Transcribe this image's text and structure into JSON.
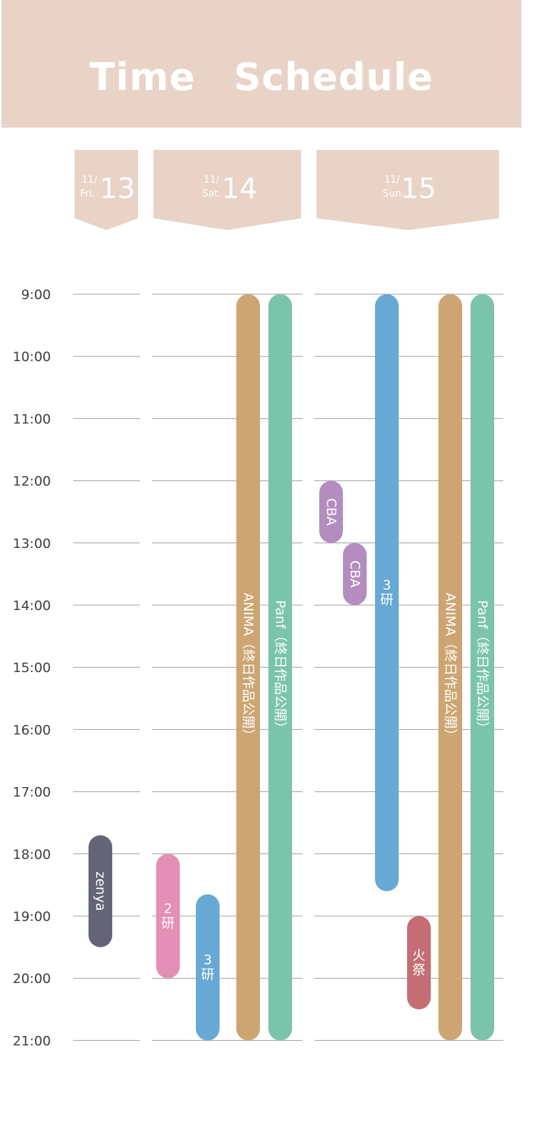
{
  "title": "Time　Schedule",
  "colors": {
    "header_bg": "#e8d3c6",
    "grid": "#9c9c9c",
    "anima": "#cda573",
    "panf": "#7bc4ac",
    "ken3": "#68a8d4",
    "ken2": "#e48fb5",
    "cba": "#b58cbf",
    "zenya": "#636478",
    "hisai": "#c46e74"
  },
  "days": [
    {
      "month": "11/",
      "weekday": "Fri.",
      "date": "13"
    },
    {
      "month": "11/",
      "weekday": "Sat.",
      "date": "14"
    },
    {
      "month": "11/",
      "weekday": "Sun.",
      "date": "15"
    }
  ],
  "chart_data": {
    "type": "timeline",
    "title": "Time　Schedule",
    "time_labels": [
      "9:00",
      "10:00",
      "11:00",
      "12:00",
      "13:00",
      "14:00",
      "15:00",
      "16:00",
      "17:00",
      "18:00",
      "19:00",
      "20:00",
      "21:00"
    ],
    "time_range": [
      9,
      21
    ],
    "events": [
      {
        "day": 0,
        "label": "zenya",
        "start": 17.7,
        "end": 19.5,
        "color": "#636478",
        "orientation": "rotated"
      },
      {
        "day": 1,
        "label": "2研",
        "start": 18.0,
        "end": 20.0,
        "color": "#e48fb5",
        "orientation": "upright"
      },
      {
        "day": 1,
        "label": "3研",
        "start": 18.65,
        "end": 21.0,
        "color": "#68a8d4",
        "orientation": "upright"
      },
      {
        "day": 1,
        "label": "ANIMA（終日作品公開）",
        "start": 9.0,
        "end": 21.0,
        "color": "#cda573",
        "orientation": "rotated"
      },
      {
        "day": 1,
        "label": "Panf（終日作品公開）",
        "start": 9.0,
        "end": 21.0,
        "color": "#7bc4ac",
        "orientation": "rotated"
      },
      {
        "day": 2,
        "label": "CBA",
        "start": 12.0,
        "end": 13.0,
        "color": "#b58cbf",
        "orientation": "rotated"
      },
      {
        "day": 2,
        "label": "CBA",
        "start": 13.0,
        "end": 14.0,
        "color": "#b58cbf",
        "orientation": "rotated"
      },
      {
        "day": 2,
        "label": "3研",
        "start": 9.0,
        "end": 18.6,
        "color": "#68a8d4",
        "orientation": "upright"
      },
      {
        "day": 2,
        "label": "火祭",
        "start": 19.0,
        "end": 20.5,
        "color": "#c46e74",
        "orientation": "upright"
      },
      {
        "day": 2,
        "label": "ANIMA（終日作品公開）",
        "start": 9.0,
        "end": 21.0,
        "color": "#cda573",
        "orientation": "rotated"
      },
      {
        "day": 2,
        "label": "Panf（終日作品公開）",
        "start": 9.0,
        "end": 21.0,
        "color": "#7bc4ac",
        "orientation": "rotated"
      }
    ]
  }
}
